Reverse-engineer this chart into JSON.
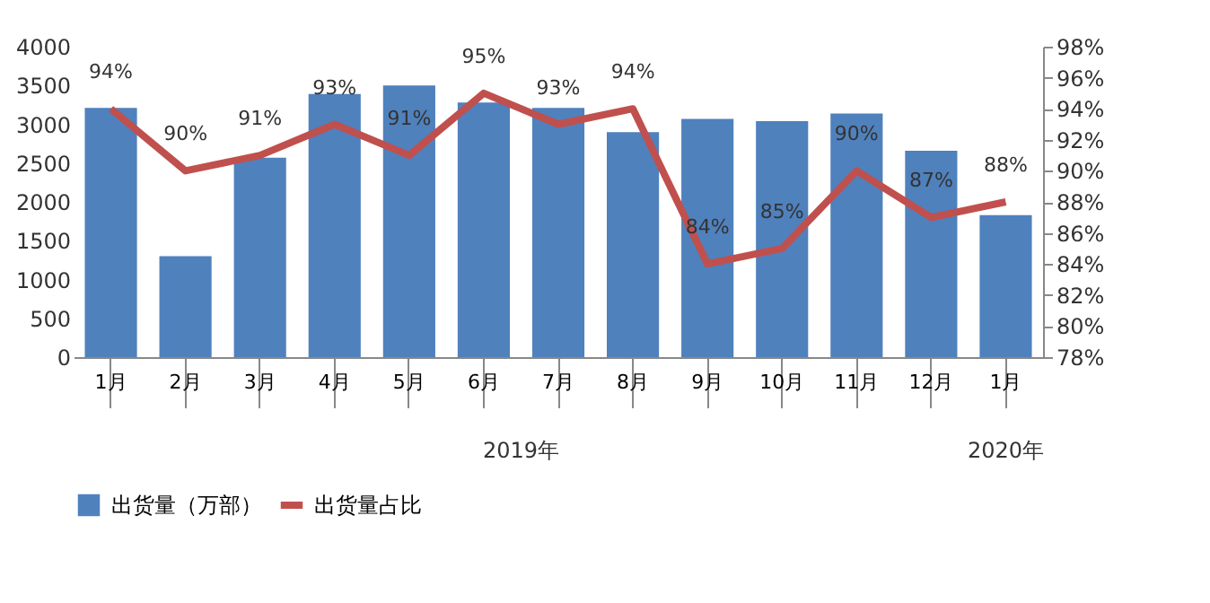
{
  "chart_data": {
    "type": "bar",
    "categories": [
      "1月",
      "2月",
      "3月",
      "4月",
      "5月",
      "6月",
      "7月",
      "8月",
      "9月",
      "10月",
      "11月",
      "12月",
      "1月"
    ],
    "annotations": [
      "2019年",
      "2020年"
    ],
    "legend": "bottom",
    "grid": false,
    "ylim": [
      0,
      4000
    ],
    "yticks": [
      0,
      500,
      1000,
      1500,
      2000,
      2500,
      3000,
      3500,
      4000
    ],
    "y2lim": [
      78,
      98
    ],
    "y2ticks": [
      {
        "value": 78,
        "label": "78%"
      },
      {
        "value": 80,
        "label": "80%"
      },
      {
        "value": 82,
        "label": "82%"
      },
      {
        "value": 84,
        "label": "84%"
      },
      {
        "value": 86,
        "label": "86%"
      },
      {
        "value": 88,
        "label": "88%"
      },
      {
        "value": 90,
        "label": "90%"
      },
      {
        "value": 92,
        "label": "92%"
      },
      {
        "value": 94,
        "label": "94%"
      },
      {
        "value": 96,
        "label": "96%"
      },
      {
        "value": 98,
        "label": "98%"
      }
    ],
    "series": [
      {
        "name": "出货量（万部）",
        "color": "#4f81bd",
        "values": [
          3210,
          1300,
          2570,
          3390,
          3500,
          3280,
          3210,
          2900,
          3070,
          3040,
          3140,
          2660,
          1830
        ]
      },
      {
        "name": "出货量占比",
        "type": "line",
        "axis": "y2",
        "color": "#c0504d",
        "values": [
          94,
          90,
          91,
          93,
          91,
          95,
          93,
          94,
          84,
          85,
          90,
          87,
          88
        ],
        "value_labels": [
          "94%",
          "90%",
          "91%",
          "93%",
          "91%",
          "95%",
          "93%",
          "94%",
          "84%",
          "85%",
          "90%",
          "87%",
          "88%"
        ]
      }
    ]
  }
}
